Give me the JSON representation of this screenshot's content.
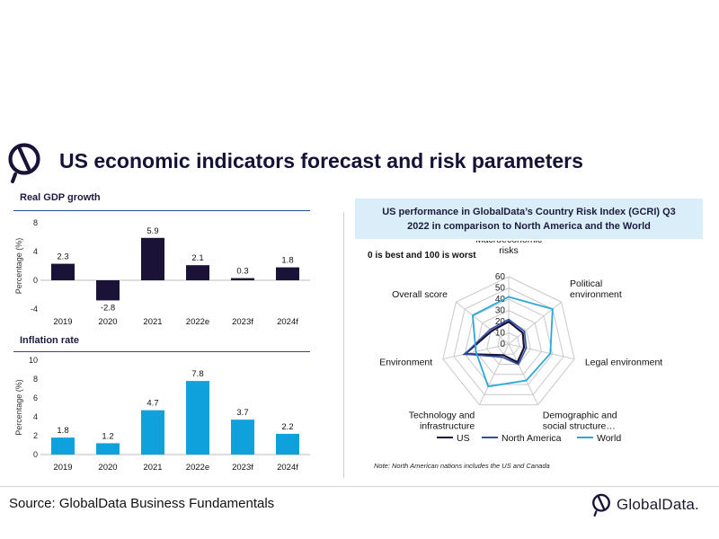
{
  "title": "US economic indicators forecast and risk parameters",
  "source": "Source: GlobalData Business Fundamentals",
  "brand": "GlobalData.",
  "colors": {
    "gdp_bar": "#1b1238",
    "inflation_bar": "#0ea1dc",
    "us": "#1b1238",
    "north_america": "#2e4fa5",
    "world": "#2aa8d8",
    "rule": "#2b4a8c"
  },
  "icons": {
    "logo": "globaldata-logo-icon"
  },
  "chart_data": [
    {
      "type": "bar",
      "title": "Real GDP growth",
      "ylabel": "Percentage (%)",
      "categories": [
        "2019",
        "2020",
        "2021",
        "2022e",
        "2023f",
        "2024f"
      ],
      "values": [
        2.3,
        -2.8,
        5.9,
        2.1,
        0.3,
        1.8
      ],
      "data_labels": [
        "2.3",
        "-2.8",
        "5.9",
        "2.1",
        "0.3",
        "1.8"
      ],
      "yticks": [
        8,
        4,
        0,
        -4
      ],
      "ylim": [
        -4,
        8
      ]
    },
    {
      "type": "bar",
      "title": "Inflation rate",
      "ylabel": "Percentage (%)",
      "categories": [
        "2019",
        "2020",
        "2021",
        "2022e",
        "2023f",
        "2024f"
      ],
      "values": [
        1.8,
        1.2,
        4.7,
        7.8,
        3.7,
        2.2
      ],
      "data_labels": [
        "1.8",
        "1.2",
        "4.7",
        "7.8",
        "3.7",
        "2.2"
      ],
      "yticks": [
        10,
        8,
        6,
        4,
        2,
        0
      ],
      "ylim": [
        0,
        10
      ]
    },
    {
      "type": "radar",
      "title": "US performance in GlobalData’s Country Risk Index (GCRI) Q3 2022 in comparison to North America and the World",
      "note": "0 is best and 100 is worst",
      "axes": [
        "Macroeconomic risks",
        "Political environment",
        "Legal environment",
        "Demographic and social structure…",
        "Technology and infrastructure",
        "Environment",
        "Overall score"
      ],
      "axis_label_lines": [
        [
          "Macroeconomic",
          "risks"
        ],
        [
          "Political",
          "environment"
        ],
        [
          "Legal environment"
        ],
        [
          "Demographic and",
          "social structure…"
        ],
        [
          "Technology and",
          "infrastructure"
        ],
        [
          "Environment"
        ],
        [
          "Overall score"
        ]
      ],
      "rticks": [
        "0",
        "10",
        "20",
        "30",
        "40",
        "50",
        "60"
      ],
      "rlim": [
        0,
        60
      ],
      "series": [
        {
          "name": "US",
          "values": [
            20,
            16,
            14,
            18,
            11,
            40,
            19
          ]
        },
        {
          "name": "North America",
          "values": [
            22,
            18,
            16,
            20,
            13,
            40,
            21
          ]
        },
        {
          "name": "World",
          "values": [
            42,
            50,
            38,
            36,
            42,
            30,
            41
          ]
        }
      ],
      "legend_position": "bottom",
      "footnote": "Note: North American nations includes the US and Canada"
    }
  ]
}
